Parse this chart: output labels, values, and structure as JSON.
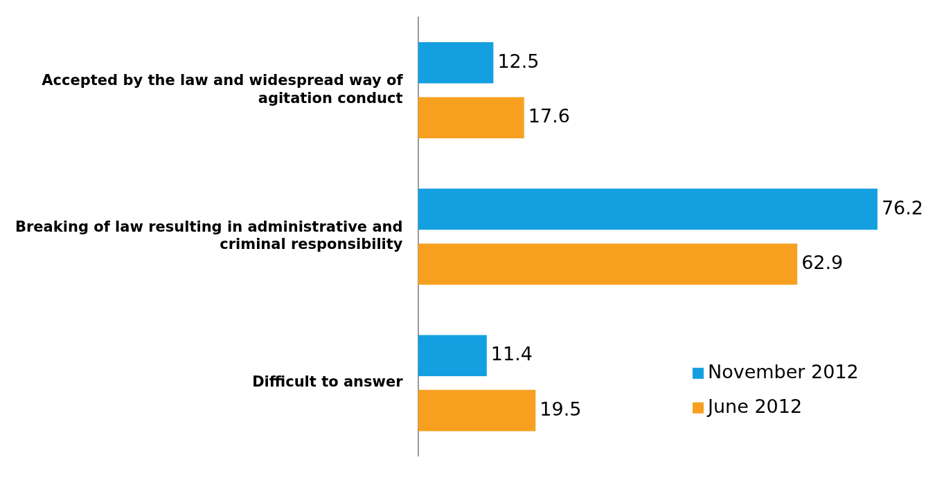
{
  "chart_data": {
    "type": "bar",
    "orientation": "horizontal",
    "categories": [
      "Accepted by the law and widespread way of agitation conduct",
      "Breaking of law resulting in administrative and criminal responsibility",
      "Difficult to answer"
    ],
    "series": [
      {
        "name": "November 2012",
        "color": "#14a0e0",
        "values": [
          12.5,
          76.2,
          11.4
        ]
      },
      {
        "name": "June 2012",
        "color": "#f7a020",
        "values": [
          17.6,
          62.9,
          19.5
        ]
      }
    ],
    "data_labels": true,
    "legend": "bottom right",
    "grid": false
  }
}
